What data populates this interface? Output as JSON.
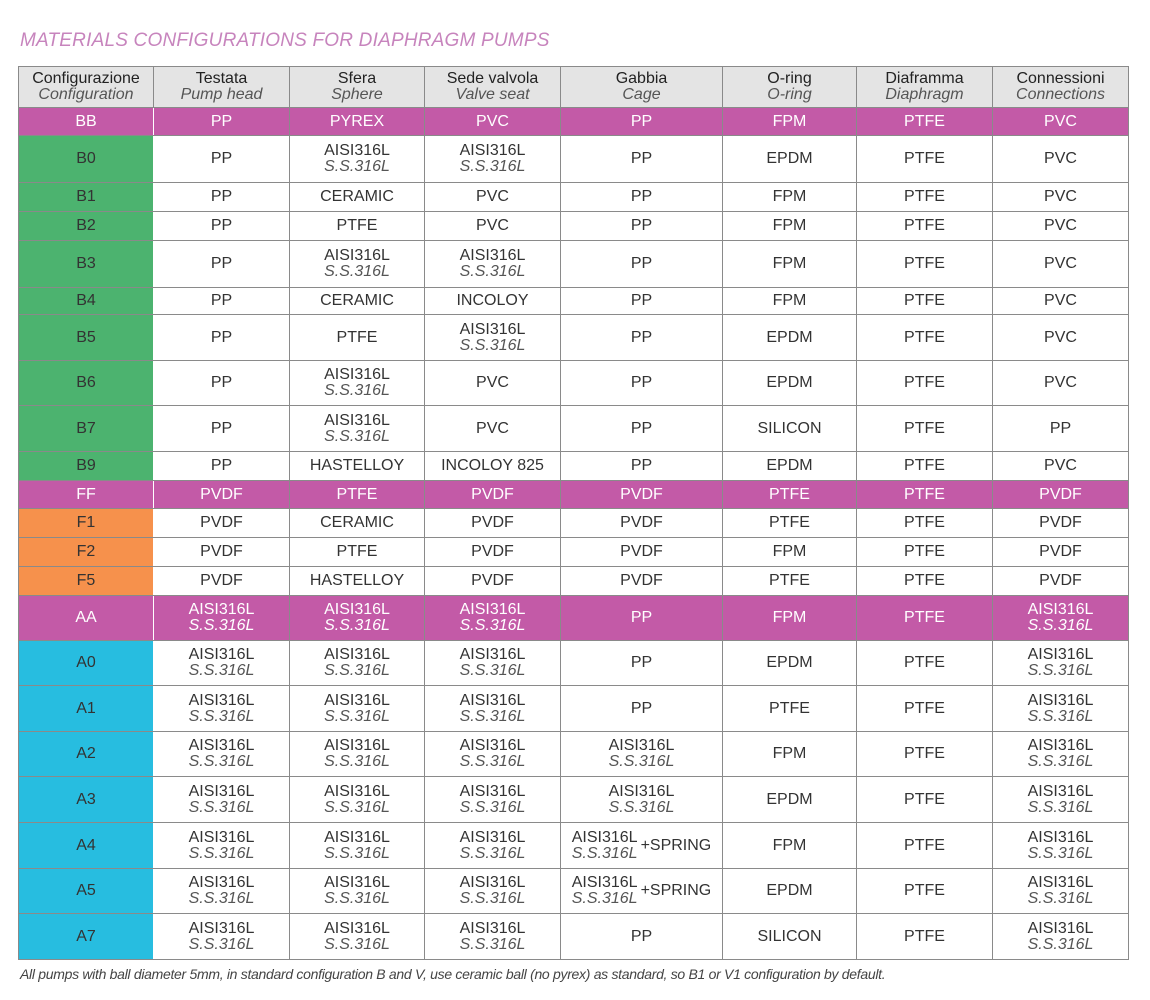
{
  "title": "MATERIALS CONFIGURATIONS FOR DIAPHRAGM PUMPS",
  "colors": {
    "pink": "#c35aa7",
    "green": "#4cb36f",
    "orange": "#f6914c",
    "cyan": "#27bde0"
  },
  "headers": [
    {
      "main": "Configurazione",
      "sub": "Configuration"
    },
    {
      "main": "Testata",
      "sub": "Pump head"
    },
    {
      "main": "Sfera",
      "sub": "Sphere"
    },
    {
      "main": "Sede valvola",
      "sub": "Valve seat"
    },
    {
      "main": "Gabbia",
      "sub": "Cage"
    },
    {
      "main": "O-ring",
      "sub": "O-ring"
    },
    {
      "main": "Diaframma",
      "sub": "Diaphragm"
    },
    {
      "main": "Connessioni",
      "sub": "Connections"
    }
  ],
  "rows": [
    {
      "group": "pink",
      "h": 28,
      "cells": [
        {
          "main": "BB"
        },
        {
          "main": "PP"
        },
        {
          "main": "PYREX"
        },
        {
          "main": "PVC"
        },
        {
          "main": "PP"
        },
        {
          "main": "FPM"
        },
        {
          "main": "PTFE"
        },
        {
          "main": "PVC"
        }
      ]
    },
    {
      "group": "green",
      "h": 47,
      "cells": [
        {
          "main": "B0"
        },
        {
          "main": "PP"
        },
        {
          "main": "AISI316L",
          "sub": "S.S.316L"
        },
        {
          "main": "AISI316L",
          "sub": "S.S.316L"
        },
        {
          "main": "PP"
        },
        {
          "main": "EPDM"
        },
        {
          "main": "PTFE"
        },
        {
          "main": "PVC"
        }
      ]
    },
    {
      "group": "green",
      "h": 29,
      "cells": [
        {
          "main": "B1"
        },
        {
          "main": "PP"
        },
        {
          "main": "CERAMIC"
        },
        {
          "main": "PVC"
        },
        {
          "main": "PP"
        },
        {
          "main": "FPM"
        },
        {
          "main": "PTFE"
        },
        {
          "main": "PVC"
        }
      ]
    },
    {
      "group": "green",
      "h": 29,
      "cells": [
        {
          "main": "B2"
        },
        {
          "main": "PP"
        },
        {
          "main": "PTFE"
        },
        {
          "main": "PVC"
        },
        {
          "main": "PP"
        },
        {
          "main": "FPM"
        },
        {
          "main": "PTFE"
        },
        {
          "main": "PVC"
        }
      ]
    },
    {
      "group": "green",
      "h": 47,
      "cells": [
        {
          "main": "B3"
        },
        {
          "main": "PP"
        },
        {
          "main": "AISI316L",
          "sub": "S.S.316L"
        },
        {
          "main": "AISI316L",
          "sub": "S.S.316L"
        },
        {
          "main": "PP"
        },
        {
          "main": "FPM"
        },
        {
          "main": "PTFE"
        },
        {
          "main": "PVC"
        }
      ]
    },
    {
      "group": "green",
      "h": 27,
      "cells": [
        {
          "main": "B4"
        },
        {
          "main": "PP"
        },
        {
          "main": "CERAMIC"
        },
        {
          "main": "INCOLOY"
        },
        {
          "main": "PP"
        },
        {
          "main": "FPM"
        },
        {
          "main": "PTFE"
        },
        {
          "main": "PVC"
        }
      ]
    },
    {
      "group": "green",
      "h": 46,
      "cells": [
        {
          "main": "B5"
        },
        {
          "main": "PP"
        },
        {
          "main": "PTFE"
        },
        {
          "main": "AISI316L",
          "sub": "S.S.316L"
        },
        {
          "main": "PP"
        },
        {
          "main": "EPDM"
        },
        {
          "main": "PTFE"
        },
        {
          "main": "PVC"
        }
      ]
    },
    {
      "group": "green",
      "h": 45,
      "cells": [
        {
          "main": "B6"
        },
        {
          "main": "PP"
        },
        {
          "main": "AISI316L",
          "sub": "S.S.316L"
        },
        {
          "main": "PVC"
        },
        {
          "main": "PP"
        },
        {
          "main": "EPDM"
        },
        {
          "main": "PTFE"
        },
        {
          "main": "PVC"
        }
      ]
    },
    {
      "group": "green",
      "h": 46,
      "cells": [
        {
          "main": "B7"
        },
        {
          "main": "PP"
        },
        {
          "main": "AISI316L",
          "sub": "S.S.316L"
        },
        {
          "main": "PVC"
        },
        {
          "main": "PP"
        },
        {
          "main": "SILICON"
        },
        {
          "main": "PTFE"
        },
        {
          "main": "PP"
        }
      ]
    },
    {
      "group": "green",
      "h": 29,
      "cells": [
        {
          "main": "B9"
        },
        {
          "main": "PP"
        },
        {
          "main": "HASTELLOY"
        },
        {
          "main": "INCOLOY 825"
        },
        {
          "main": "PP"
        },
        {
          "main": "EPDM"
        },
        {
          "main": "PTFE"
        },
        {
          "main": "PVC"
        }
      ]
    },
    {
      "group": "pink",
      "h": 28,
      "cells": [
        {
          "main": "FF"
        },
        {
          "main": "PVDF"
        },
        {
          "main": "PTFE"
        },
        {
          "main": "PVDF"
        },
        {
          "main": "PVDF"
        },
        {
          "main": "PTFE"
        },
        {
          "main": "PTFE"
        },
        {
          "main": "PVDF"
        }
      ]
    },
    {
      "group": "orange",
      "h": 29,
      "cells": [
        {
          "main": "F1"
        },
        {
          "main": "PVDF"
        },
        {
          "main": "CERAMIC"
        },
        {
          "main": "PVDF"
        },
        {
          "main": "PVDF"
        },
        {
          "main": "PTFE"
        },
        {
          "main": "PTFE"
        },
        {
          "main": "PVDF"
        }
      ]
    },
    {
      "group": "orange",
      "h": 29,
      "cells": [
        {
          "main": "F2"
        },
        {
          "main": "PVDF"
        },
        {
          "main": "PTFE"
        },
        {
          "main": "PVDF"
        },
        {
          "main": "PVDF"
        },
        {
          "main": "FPM"
        },
        {
          "main": "PTFE"
        },
        {
          "main": "PVDF"
        }
      ]
    },
    {
      "group": "orange",
      "h": 29,
      "cells": [
        {
          "main": "F5"
        },
        {
          "main": "PVDF"
        },
        {
          "main": "HASTELLOY"
        },
        {
          "main": "PVDF"
        },
        {
          "main": "PVDF"
        },
        {
          "main": "PTFE"
        },
        {
          "main": "PTFE"
        },
        {
          "main": "PVDF"
        }
      ]
    },
    {
      "group": "pink",
      "h": 45,
      "cells": [
        {
          "main": "AA"
        },
        {
          "main": "AISI316L",
          "sub": "S.S.316L"
        },
        {
          "main": "AISI316L",
          "sub": "S.S.316L"
        },
        {
          "main": "AISI316L",
          "sub": "S.S.316L"
        },
        {
          "main": "PP"
        },
        {
          "main": "FPM"
        },
        {
          "main": "PTFE"
        },
        {
          "main": "AISI316L",
          "sub": "S.S.316L"
        }
      ]
    },
    {
      "group": "cyan",
      "h": 45,
      "cells": [
        {
          "main": "A0"
        },
        {
          "main": "AISI316L",
          "sub": "S.S.316L"
        },
        {
          "main": "AISI316L",
          "sub": "S.S.316L"
        },
        {
          "main": "AISI316L",
          "sub": "S.S.316L"
        },
        {
          "main": "PP"
        },
        {
          "main": "EPDM"
        },
        {
          "main": "PTFE"
        },
        {
          "main": "AISI316L",
          "sub": "S.S.316L"
        }
      ]
    },
    {
      "group": "cyan",
      "h": 46,
      "cells": [
        {
          "main": "A1"
        },
        {
          "main": "AISI316L",
          "sub": "S.S.316L"
        },
        {
          "main": "AISI316L",
          "sub": "S.S.316L"
        },
        {
          "main": "AISI316L",
          "sub": "S.S.316L"
        },
        {
          "main": "PP"
        },
        {
          "main": "PTFE"
        },
        {
          "main": "PTFE"
        },
        {
          "main": "AISI316L",
          "sub": "S.S.316L"
        }
      ]
    },
    {
      "group": "cyan",
      "h": 45,
      "cells": [
        {
          "main": "A2"
        },
        {
          "main": "AISI316L",
          "sub": "S.S.316L"
        },
        {
          "main": "AISI316L",
          "sub": "S.S.316L"
        },
        {
          "main": "AISI316L",
          "sub": "S.S.316L"
        },
        {
          "main": "AISI316L",
          "sub": "S.S.316L"
        },
        {
          "main": "FPM"
        },
        {
          "main": "PTFE"
        },
        {
          "main": "AISI316L",
          "sub": "S.S.316L"
        }
      ]
    },
    {
      "group": "cyan",
      "h": 46,
      "cells": [
        {
          "main": "A3"
        },
        {
          "main": "AISI316L",
          "sub": "S.S.316L"
        },
        {
          "main": "AISI316L",
          "sub": "S.S.316L"
        },
        {
          "main": "AISI316L",
          "sub": "S.S.316L"
        },
        {
          "main": "AISI316L",
          "sub": "S.S.316L"
        },
        {
          "main": "EPDM"
        },
        {
          "main": "PTFE"
        },
        {
          "main": "AISI316L",
          "sub": "S.S.316L"
        }
      ]
    },
    {
      "group": "cyan",
      "h": 46,
      "cells": [
        {
          "main": "A4"
        },
        {
          "main": "AISI316L",
          "sub": "S.S.316L"
        },
        {
          "main": "AISI316L",
          "sub": "S.S.316L"
        },
        {
          "main": "AISI316L",
          "sub": "S.S.316L"
        },
        {
          "main": "AISI316L",
          "sub": "S.S.316L",
          "extra": "+SPRING"
        },
        {
          "main": "FPM"
        },
        {
          "main": "PTFE"
        },
        {
          "main": "AISI316L",
          "sub": "S.S.316L"
        }
      ]
    },
    {
      "group": "cyan",
      "h": 45,
      "cells": [
        {
          "main": "A5"
        },
        {
          "main": "AISI316L",
          "sub": "S.S.316L"
        },
        {
          "main": "AISI316L",
          "sub": "S.S.316L"
        },
        {
          "main": "AISI316L",
          "sub": "S.S.316L"
        },
        {
          "main": "AISI316L",
          "sub": "S.S.316L",
          "extra": "+SPRING"
        },
        {
          "main": "EPDM"
        },
        {
          "main": "PTFE"
        },
        {
          "main": "AISI316L",
          "sub": "S.S.316L"
        }
      ]
    },
    {
      "group": "cyan",
      "h": 46,
      "cells": [
        {
          "main": "A7"
        },
        {
          "main": "AISI316L",
          "sub": "S.S.316L"
        },
        {
          "main": "AISI316L",
          "sub": "S.S.316L"
        },
        {
          "main": "AISI316L",
          "sub": "S.S.316L"
        },
        {
          "main": "PP"
        },
        {
          "main": "SILICON"
        },
        {
          "main": "PTFE"
        },
        {
          "main": "AISI316L",
          "sub": "S.S.316L"
        }
      ]
    }
  ],
  "footnote": "All pumps with ball diameter 5mm, in standard configuration B and V, use ceramic ball (no pyrex) as standard, so B1 or V1 configuration by default."
}
